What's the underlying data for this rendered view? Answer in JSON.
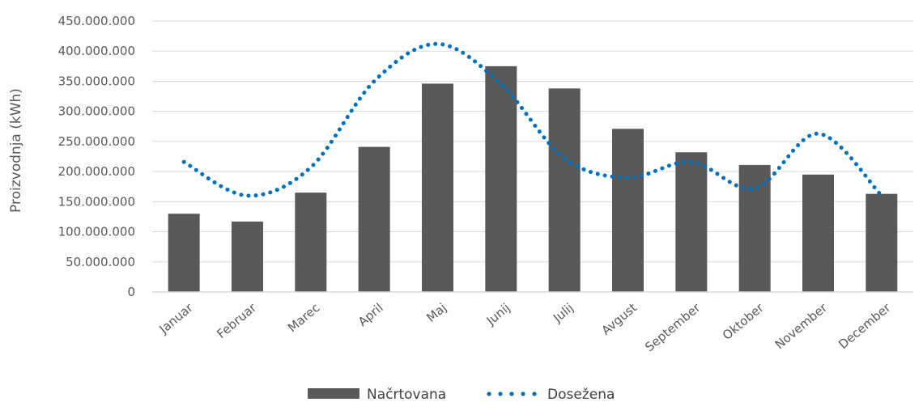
{
  "chart_data": {
    "type": "bar",
    "categories": [
      "Januar",
      "Februar",
      "Marec",
      "April",
      "Maj",
      "Junij",
      "Julij",
      "Avgust",
      "September",
      "Oktober",
      "November",
      "December"
    ],
    "series": [
      {
        "name": "Načrtovana",
        "type": "bar",
        "color": "#595959",
        "values": [
          130000000,
          117000000,
          165000000,
          241000000,
          346000000,
          375000000,
          338000000,
          271000000,
          232000000,
          211000000,
          195000000,
          163000000
        ]
      },
      {
        "name": "Dosežena",
        "type": "line",
        "style": "dotted",
        "color": "#0070c0",
        "values": [
          216000000,
          160000000,
          207000000,
          350000000,
          412000000,
          345000000,
          222000000,
          190000000,
          216000000,
          172000000,
          263000000,
          160000000
        ]
      }
    ],
    "ylabel": "Proizvodnja (kWh)",
    "xlabel": "",
    "ylim": [
      0,
      450000000
    ],
    "yticks": [
      "0",
      "50.000.000",
      "100.000.000",
      "150.000.000",
      "200.000.000",
      "250.000.000",
      "300.000.000",
      "350.000.000",
      "400.000.000",
      "450.000.000"
    ],
    "grid": true,
    "legend": "bottom-center"
  }
}
